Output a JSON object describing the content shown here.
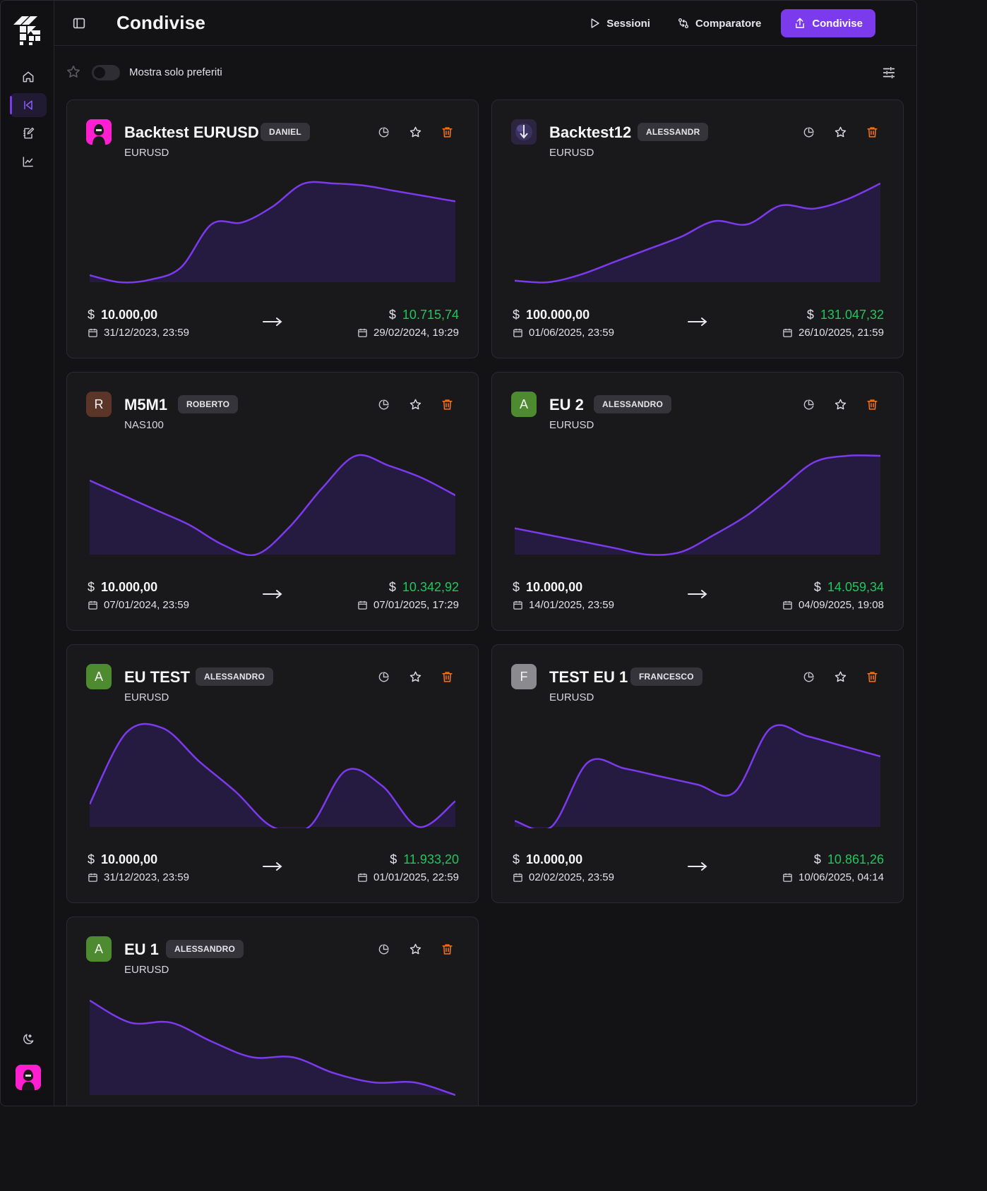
{
  "app": {
    "title": "Condivise",
    "nav": {
      "sessions": "Sessioni",
      "comparator": "Comparatore",
      "shared": "Condivise"
    }
  },
  "filters": {
    "favorites_label": "Mostra solo preferiti",
    "favorites_only": false
  },
  "colors": {
    "accent": "#7c3aed",
    "gain": "#22c55e",
    "trash": "#f97316",
    "line": "#7c3aed",
    "area": "#251a3f"
  },
  "cards": [
    {
      "title": "Backtest EURUSD",
      "owner": "DANIEL",
      "symbol": "EURUSD",
      "avatar_type": "image",
      "avatar_letter": "",
      "avatar_color": "#ff1fd0",
      "start_balance": "10.000,00",
      "start_date": "31/12/2023, 23:59",
      "end_balance": "10.715,74",
      "end_date": "29/02/2024, 19:29",
      "equity": [
        10000,
        9960,
        9975,
        10045,
        10290,
        10300,
        10390,
        10520,
        10522,
        10510,
        10480,
        10450,
        10420
      ]
    },
    {
      "title": "Backtest12",
      "owner": "ALESSANDR",
      "symbol": "EURUSD",
      "avatar_type": "image",
      "avatar_letter": "",
      "avatar_color": "#2b2540",
      "start_balance": "100.000,00",
      "start_date": "01/06/2025, 23:59",
      "end_balance": "131.047,32",
      "end_date": "26/10/2025, 21:59",
      "equity": [
        100000,
        99500,
        102000,
        106000,
        110000,
        114000,
        119000,
        118000,
        124000,
        123000,
        126000,
        131047
      ]
    },
    {
      "title": "M5M1",
      "owner": "ROBERTO",
      "symbol": "NAS100",
      "avatar_type": "letter",
      "avatar_letter": "R",
      "avatar_color": "#5c3529",
      "start_balance": "10.000,00",
      "start_date": "07/01/2024, 23:59",
      "end_balance": "10.342,92",
      "end_date": "07/01/2025, 17:29",
      "equity": [
        10230,
        10170,
        10110,
        10050,
        9970,
        9930,
        10040,
        10200,
        10330,
        10290,
        10240,
        10170
      ]
    },
    {
      "title": "EU 2",
      "owner": "ALESSANDRO",
      "symbol": "EURUSD",
      "avatar_type": "letter",
      "avatar_letter": "A",
      "avatar_color": "#4e8a2f",
      "start_balance": "10.000,00",
      "start_date": "14/01/2025, 23:59",
      "end_balance": "14.059,34",
      "end_date": "04/09/2025, 19:08",
      "equity": [
        10300,
        10250,
        10200,
        10150,
        10100,
        10120,
        10250,
        10400,
        10600,
        10800,
        10850,
        10850
      ]
    },
    {
      "title": "EU TEST",
      "owner": "ALESSANDRO",
      "symbol": "EURUSD",
      "avatar_type": "letter",
      "avatar_letter": "A",
      "avatar_color": "#4e8a2f",
      "start_balance": "10.000,00",
      "start_date": "31/12/2023, 23:59",
      "end_balance": "11.933,20",
      "end_date": "01/01/2025, 22:59",
      "equity": [
        10480,
        10950,
        10980,
        10760,
        10560,
        10330,
        10330,
        10700,
        10600,
        10330,
        10500
      ]
    },
    {
      "title": "TEST EU 1",
      "owner": "FRANCESCO",
      "symbol": "EURUSD",
      "avatar_type": "letter",
      "avatar_letter": "F",
      "avatar_color": "#8a8a8f",
      "start_balance": "10.000,00",
      "start_date": "02/02/2025, 23:59",
      "end_balance": "10.861,26",
      "end_date": "10/06/2025, 04:14",
      "equity": [
        10000,
        9970,
        10290,
        10260,
        10220,
        10180,
        10140,
        10460,
        10420,
        10370,
        10320
      ]
    },
    {
      "title": "EU 1",
      "owner": "ALESSANDRO",
      "symbol": "EURUSD",
      "avatar_type": "letter",
      "avatar_letter": "A",
      "avatar_color": "#4e8a2f",
      "start_balance": "",
      "start_date": "",
      "end_balance": "",
      "end_date": "",
      "equity": [
        10500,
        10430,
        10430,
        10370,
        10320,
        10320,
        10270,
        10240,
        10240,
        10200
      ]
    }
  ]
}
